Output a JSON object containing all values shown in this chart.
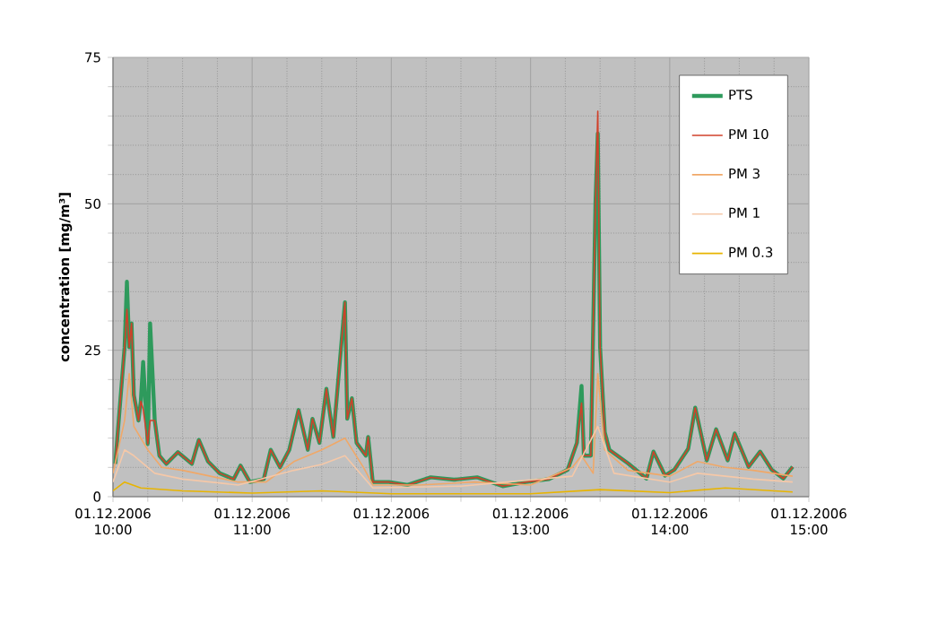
{
  "chart_data": {
    "type": "line",
    "ylabel": "concentration [mg/m³]",
    "xlim": [
      "2006-12-01T10:00",
      "2006-12-01T15:00"
    ],
    "ylim": [
      0,
      75
    ],
    "yticks": [
      0,
      25,
      50,
      75
    ],
    "xticks": [
      {
        "value": "2006-12-01T10:00",
        "label": "01.12.2006 10:00"
      },
      {
        "value": "2006-12-01T11:00",
        "label": "01.12.2006 11:00"
      },
      {
        "value": "2006-12-01T12:00",
        "label": "01.12.2006 12:00"
      },
      {
        "value": "2006-12-01T13:00",
        "label": "01.12.2006 13:00"
      },
      {
        "value": "2006-12-01T14:00",
        "label": "01.12.2006 14:00"
      },
      {
        "value": "2006-12-01T15:00",
        "label": "01.12.2006 15:00"
      }
    ],
    "grid": true,
    "legend": "top right",
    "marker": "none",
    "line_style": "solid",
    "series": [
      {
        "name": "PTS",
        "color": "#2e9a5c",
        "x": [
          "2006-12-01T10:01",
          "2006-12-01T10:02",
          "2006-12-01T10:05",
          "2006-12-01T10:06",
          "2006-12-01T10:07",
          "2006-12-01T10:08",
          "2006-12-01T10:09",
          "2006-12-01T10:11",
          "2006-12-01T10:12",
          "2006-12-01T10:13",
          "2006-12-01T10:15",
          "2006-12-01T10:16",
          "2006-12-01T10:18",
          "2006-12-01T10:20",
          "2006-12-01T10:23",
          "2006-12-01T10:28",
          "2006-12-01T10:34",
          "2006-12-01T10:37",
          "2006-12-01T10:41",
          "2006-12-01T10:46",
          "2006-12-01T10:52",
          "2006-12-01T10:55",
          "2006-12-01T10:59",
          "2006-12-01T11:05",
          "2006-12-01T11:08",
          "2006-12-01T11:12",
          "2006-12-01T11:16",
          "2006-12-01T11:20",
          "2006-12-01T11:24",
          "2006-12-01T11:26",
          "2006-12-01T11:29",
          "2006-12-01T11:32",
          "2006-12-01T11:35",
          "2006-12-01T11:40",
          "2006-12-01T11:41",
          "2006-12-01T11:43",
          "2006-12-01T11:45",
          "2006-12-01T11:49",
          "2006-12-01T11:50",
          "2006-12-01T11:52",
          "2006-12-01T11:59",
          "2006-12-01T12:07",
          "2006-12-01T12:17",
          "2006-12-01T12:27",
          "2006-12-01T12:37",
          "2006-12-01T12:48",
          "2006-12-01T12:58",
          "2006-12-01T13:08",
          "2006-12-01T13:16",
          "2006-12-01T13:20",
          "2006-12-01T13:22",
          "2006-12-01T13:23",
          "2006-12-01T13:26",
          "2006-12-01T13:28",
          "2006-12-01T13:29",
          "2006-12-01T13:30",
          "2006-12-01T13:32",
          "2006-12-01T13:34",
          "2006-12-01T13:42",
          "2006-12-01T13:50",
          "2006-12-01T13:53",
          "2006-12-01T13:58",
          "2006-12-01T14:02",
          "2006-12-01T14:08",
          "2006-12-01T14:11",
          "2006-12-01T14:16",
          "2006-12-01T14:20",
          "2006-12-01T14:25",
          "2006-12-01T14:28",
          "2006-12-01T14:34",
          "2006-12-01T14:39",
          "2006-12-01T14:44",
          "2006-12-01T14:49",
          "2006-12-01T14:53"
        ],
        "values": [
          5.6,
          10.7,
          25.5,
          36.7,
          25.5,
          29.6,
          17.3,
          13,
          16.3,
          23,
          9,
          29.6,
          13,
          7,
          5.6,
          7.6,
          5.6,
          9.7,
          6,
          4,
          3,
          5.3,
          2.5,
          3,
          8,
          5,
          8,
          14.8,
          8,
          13.3,
          9.2,
          18.4,
          10.2,
          33.2,
          13.3,
          16.8,
          9.2,
          7,
          10.2,
          2.5,
          2.5,
          2,
          3.3,
          2.9,
          3.3,
          1.8,
          2.5,
          3,
          4.6,
          9.2,
          18.9,
          7,
          7,
          50,
          62,
          25.5,
          11,
          8,
          5.7,
          3.1,
          7.7,
          3.6,
          4.6,
          8.2,
          15.2,
          6.2,
          11.5,
          6.2,
          10.8,
          5.1,
          7.7,
          4.6,
          3.1,
          5.1
        ]
      },
      {
        "name": "PM 10",
        "color": "#d0402a",
        "x": [
          "2006-12-01T10:01",
          "2006-12-01T10:02",
          "2006-12-01T10:05",
          "2006-12-01T10:06",
          "2006-12-01T10:07",
          "2006-12-01T10:08",
          "2006-12-01T10:09",
          "2006-12-01T10:11",
          "2006-12-01T10:12",
          "2006-12-01T10:13",
          "2006-12-01T10:15",
          "2006-12-01T10:16",
          "2006-12-01T10:18",
          "2006-12-01T10:20",
          "2006-12-01T10:23",
          "2006-12-01T10:28",
          "2006-12-01T10:34",
          "2006-12-01T10:37",
          "2006-12-01T10:41",
          "2006-12-01T10:46",
          "2006-12-01T10:52",
          "2006-12-01T10:55",
          "2006-12-01T10:59",
          "2006-12-01T11:05",
          "2006-12-01T11:08",
          "2006-12-01T11:12",
          "2006-12-01T11:16",
          "2006-12-01T11:20",
          "2006-12-01T11:24",
          "2006-12-01T11:26",
          "2006-12-01T11:29",
          "2006-12-01T11:32",
          "2006-12-01T11:35",
          "2006-12-01T11:40",
          "2006-12-01T11:41",
          "2006-12-01T11:43",
          "2006-12-01T11:45",
          "2006-12-01T11:49",
          "2006-12-01T11:50",
          "2006-12-01T11:52",
          "2006-12-01T11:59",
          "2006-12-01T12:07",
          "2006-12-01T12:17",
          "2006-12-01T12:27",
          "2006-12-01T12:37",
          "2006-12-01T12:48",
          "2006-12-01T12:58",
          "2006-12-01T13:08",
          "2006-12-01T13:16",
          "2006-12-01T13:20",
          "2006-12-01T13:22",
          "2006-12-01T13:23",
          "2006-12-01T13:26",
          "2006-12-01T13:28",
          "2006-12-01T13:29",
          "2006-12-01T13:30",
          "2006-12-01T13:32",
          "2006-12-01T13:34",
          "2006-12-01T13:42",
          "2006-12-01T13:50",
          "2006-12-01T13:53",
          "2006-12-01T13:58",
          "2006-12-01T14:02",
          "2006-12-01T14:08",
          "2006-12-01T14:11",
          "2006-12-01T14:16",
          "2006-12-01T14:20",
          "2006-12-01T14:25",
          "2006-12-01T14:28",
          "2006-12-01T14:34",
          "2006-12-01T14:39",
          "2006-12-01T14:44",
          "2006-12-01T14:49",
          "2006-12-01T14:53"
        ],
        "values": [
          5.6,
          10.7,
          25.5,
          32,
          25.5,
          29.6,
          17.3,
          13,
          16.3,
          15,
          9,
          13,
          13,
          7,
          5.6,
          7.6,
          5.6,
          9.7,
          6,
          4,
          3,
          5.3,
          2.5,
          3,
          8,
          5,
          8,
          14.8,
          8,
          13.3,
          9.2,
          18.4,
          10.2,
          33.2,
          13.3,
          16.8,
          9.2,
          7,
          10.2,
          2.5,
          2.5,
          2,
          3.3,
          2.9,
          3.3,
          1.8,
          2.5,
          3,
          4.6,
          9.2,
          16,
          7,
          7,
          50,
          65.8,
          25.5,
          11,
          8,
          5.7,
          3.1,
          7.7,
          3.6,
          4.6,
          8.2,
          15.2,
          6.2,
          11.5,
          6.2,
          10.8,
          5.1,
          7.7,
          4.6,
          3.1,
          5.1
        ]
      },
      {
        "name": "PM 3",
        "color": "#f0a868",
        "x": [
          "2006-12-01T10:00",
          "2006-12-01T10:05",
          "2006-12-01T10:07",
          "2006-12-01T10:09",
          "2006-12-01T10:15",
          "2006-12-01T10:21",
          "2006-12-01T10:30",
          "2006-12-01T10:42",
          "2006-12-01T10:54",
          "2006-12-01T11:06",
          "2006-12-01T11:18",
          "2006-12-01T11:30",
          "2006-12-01T11:40",
          "2006-12-01T11:48",
          "2006-12-01T11:52",
          "2006-12-01T12:12",
          "2006-12-01T12:36",
          "2006-12-01T13:00",
          "2006-12-01T13:18",
          "2006-12-01T13:22",
          "2006-12-01T13:27",
          "2006-12-01T13:29",
          "2006-12-01T13:32",
          "2006-12-01T13:42",
          "2006-12-01T14:00",
          "2006-12-01T14:12",
          "2006-12-01T14:24",
          "2006-12-01T14:36",
          "2006-12-01T14:53"
        ],
        "values": [
          4,
          13,
          21,
          12,
          8,
          5,
          4.5,
          3.5,
          2.5,
          2.5,
          6,
          8,
          10,
          5,
          2,
          2,
          2.5,
          2,
          5,
          7,
          4,
          21,
          8,
          4.5,
          3.5,
          6,
          5,
          4.5,
          3.5
        ]
      },
      {
        "name": "PM 1",
        "color": "#f5c8a8",
        "x": [
          "2006-12-01T10:00",
          "2006-12-01T10:05",
          "2006-12-01T10:09",
          "2006-12-01T10:18",
          "2006-12-01T10:30",
          "2006-12-01T10:54",
          "2006-12-01T11:18",
          "2006-12-01T11:30",
          "2006-12-01T11:40",
          "2006-12-01T11:52",
          "2006-12-01T12:30",
          "2006-12-01T13:18",
          "2006-12-01T13:29",
          "2006-12-01T13:36",
          "2006-12-01T14:00",
          "2006-12-01T14:12",
          "2006-12-01T14:36",
          "2006-12-01T14:53"
        ],
        "values": [
          2.5,
          8,
          7,
          4,
          3,
          2,
          4.5,
          5.5,
          7,
          1.5,
          1.8,
          3.5,
          12,
          4,
          2.5,
          4,
          3,
          2.5
        ]
      },
      {
        "name": "PM 0.3",
        "color": "#e8b400",
        "x": [
          "2006-12-01T10:00",
          "2006-12-01T10:05",
          "2006-12-01T10:12",
          "2006-12-01T10:30",
          "2006-12-01T11:00",
          "2006-12-01T11:30",
          "2006-12-01T12:00",
          "2006-12-01T13:00",
          "2006-12-01T13:30",
          "2006-12-01T14:00",
          "2006-12-01T14:24",
          "2006-12-01T14:53"
        ],
        "values": [
          1,
          2.5,
          1.5,
          1,
          0.6,
          1,
          0.5,
          0.5,
          1.2,
          0.7,
          1.5,
          0.8
        ]
      }
    ]
  }
}
